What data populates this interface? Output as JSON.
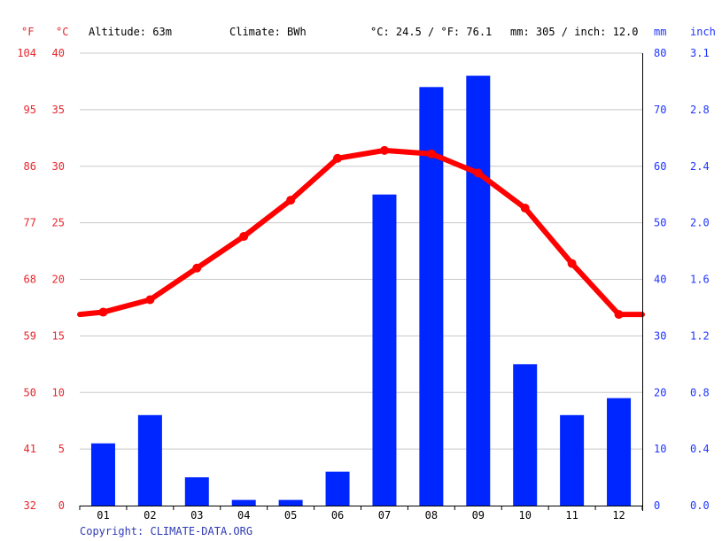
{
  "header": {
    "unit_f": "°F",
    "unit_c": "°C",
    "altitude": "Altitude: 63m",
    "climate": "Climate: BWh",
    "avg_temp": "°C: 24.5 / °F: 76.1",
    "precip_total": "mm: 305 / inch: 12.0",
    "unit_mm": "mm",
    "unit_inch": "inch"
  },
  "footer": {
    "copyright": "Copyright: CLIMATE-DATA.ORG"
  },
  "colors": {
    "temperature": "#ff0000",
    "precipitation": "#0026ff",
    "left_axis_text": "#e8252b",
    "right_axis_text": "#1f34ff",
    "grid": "#c8c8c8",
    "text": "#000000",
    "copyright": "#2f3ab5"
  },
  "chart_data": {
    "type": "bar",
    "categories": [
      "01",
      "02",
      "03",
      "04",
      "05",
      "06",
      "07",
      "08",
      "09",
      "10",
      "11",
      "12"
    ],
    "series": [
      {
        "type": "line",
        "axis": "left",
        "values": [
          17.1,
          18.2,
          21.0,
          23.8,
          27.0,
          30.7,
          31.4,
          31.1,
          29.4,
          26.3,
          21.4,
          16.9
        ]
      },
      {
        "type": "bar",
        "axis": "right",
        "values": [
          11,
          16,
          5,
          1,
          1,
          6,
          55,
          74,
          76,
          25,
          16,
          19
        ]
      }
    ],
    "left_axis": {
      "ylim": [
        0,
        40
      ],
      "ticks_c": [
        "0",
        "5",
        "10",
        "15",
        "20",
        "25",
        "30",
        "35",
        "40"
      ],
      "ticks_f": [
        "32",
        "41",
        "50",
        "59",
        "68",
        "77",
        "86",
        "95",
        "104"
      ]
    },
    "right_axis": {
      "ylim": [
        0,
        80
      ],
      "ticks_mm": [
        "0",
        "10",
        "20",
        "30",
        "40",
        "50",
        "60",
        "70",
        "80"
      ],
      "ticks_inch": [
        "0.0",
        "0.4",
        "0.8",
        "1.2",
        "1.6",
        "2.0",
        "2.4",
        "2.8",
        "3.1"
      ]
    },
    "grid": true
  }
}
